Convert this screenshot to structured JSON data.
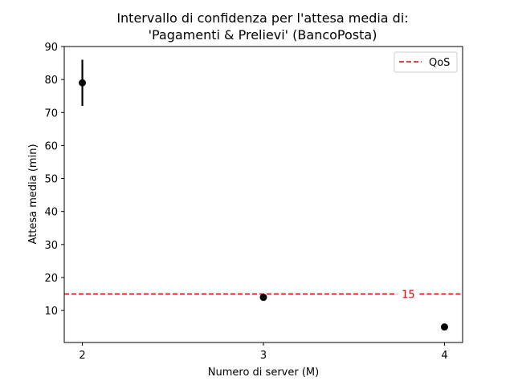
{
  "chart_data": {
    "type": "scatter",
    "title_line1": "Intervallo di confidenza per l'attesa media di:",
    "title_line2": "'Pagamenti & Prelievi' (BancoPosta)",
    "xlabel": "Numero di server (M)",
    "ylabel": "Attesa media (min)",
    "x_ticks": [
      2,
      3,
      4
    ],
    "y_ticks": [
      10,
      20,
      30,
      40,
      50,
      60,
      70,
      80,
      90
    ],
    "xlim": [
      1.9,
      4.1
    ],
    "ylim": [
      0.3,
      90
    ],
    "points": [
      {
        "x": 2,
        "y": 79,
        "ci_low": 72,
        "ci_high": 86
      },
      {
        "x": 3,
        "y": 14,
        "ci_low": 13,
        "ci_high": 15
      },
      {
        "x": 4,
        "y": 5,
        "ci_low": 5,
        "ci_high": 5
      }
    ],
    "reference_line": {
      "y": 15,
      "label": "15",
      "legend": "QoS",
      "color": "#e00000"
    },
    "legend_position": "top-right",
    "grid": false,
    "point_color": "#000000"
  }
}
